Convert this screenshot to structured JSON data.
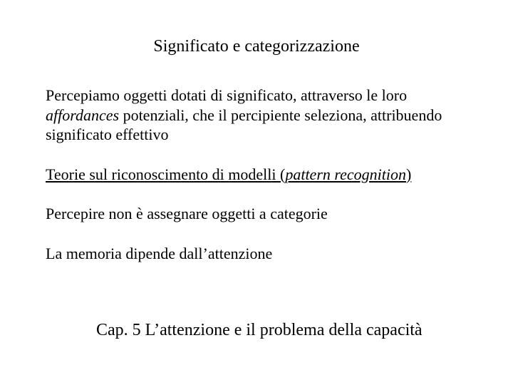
{
  "title": "Significato e categorizzazione",
  "p1_a": "Percepiamo oggetti dotati di significato, attraverso le loro ",
  "p1_b": "affordances",
  "p1_c": " potenziali, che il percipiente seleziona, attribuendo significato effettivo",
  "p2_a": "Teorie sul riconoscimento di modelli (",
  "p2_b": "pattern recognition",
  "p2_c": ")",
  "p3": "Percepire non è assegnare oggetti a categorie",
  "p4": "La memoria dipende dall’attenzione",
  "chapter": "Cap. 5 L’attenzione e il problema della capacità",
  "colors": {
    "text": "#000000",
    "background": "#ffffff"
  },
  "font": {
    "family": "Times New Roman",
    "title_size_pt": 24,
    "body_size_pt": 22
  }
}
